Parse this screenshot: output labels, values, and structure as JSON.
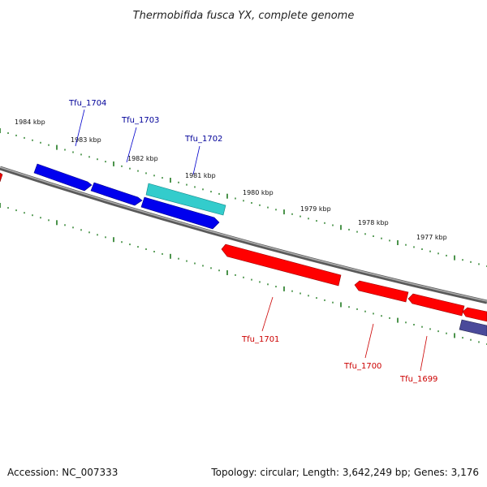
{
  "title": "Thermobifida fusca YX, complete genome",
  "footer": {
    "accession": "Accession: NC_007333",
    "summary": "Topology: circular; Length: 3,642,249 bp; Genes: 3,176"
  },
  "colors": {
    "backbone": "#888888",
    "tick": "#1f7a1f",
    "forward_gene": "#0000ee",
    "selected_gene": "#33cccc",
    "reverse_gene": "#ff0000",
    "other_gene": "#4a4a9a",
    "forward_label": "#000099",
    "reverse_label": "#cc0000"
  },
  "scale_labels": [
    "1984 kbp",
    "1983 kbp",
    "1982 kbp",
    "1981 kbp",
    "1980 kbp",
    "1979 kbp",
    "1978 kbp",
    "1977 kbp"
  ],
  "genes": [
    {
      "label": "Tfu_1704",
      "strand": "forward"
    },
    {
      "label": "Tfu_1703",
      "strand": "forward"
    },
    {
      "label": "Tfu_1702",
      "strand": "forward"
    },
    {
      "label": "Tfu_1701",
      "strand": "reverse"
    },
    {
      "label": "Tfu_1700",
      "strand": "reverse"
    },
    {
      "label": "Tfu_1699",
      "strand": "reverse"
    }
  ]
}
